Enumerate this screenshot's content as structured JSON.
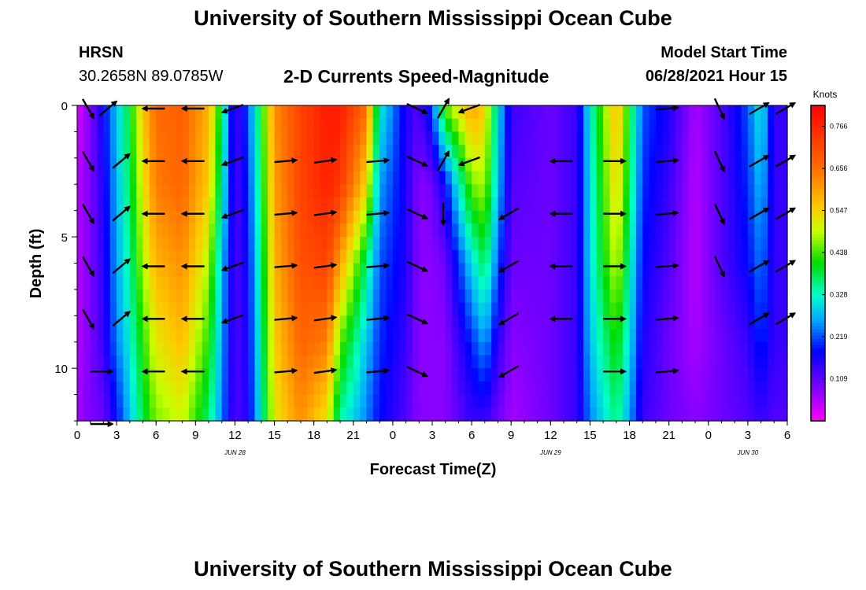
{
  "header": {
    "title": "University of Southern Mississippi Ocean Cube",
    "station": "HRSN",
    "coords": "30.2658N  89.0785W",
    "subtitle": "2-D Currents Speed-Magnitude",
    "model_label": "Model Start Time",
    "model_time": "06/28/2021 Hour 15"
  },
  "footer": {
    "title": "University of Southern Mississippi Ocean Cube"
  },
  "chart_data": {
    "type": "heatmap",
    "title": "2-D Currents Speed-Magnitude",
    "xlabel": "Forecast Time(Z)",
    "ylabel": "Depth (ft)",
    "x_hours": [
      0,
      54
    ],
    "xlim": [
      0,
      54
    ],
    "ylim": [
      0,
      12
    ],
    "x_tick_labels": [
      "0",
      "3",
      "6",
      "9",
      "12",
      "15",
      "18",
      "21",
      "0",
      "3",
      "6",
      "9",
      "12",
      "15",
      "18",
      "21",
      "0",
      "3",
      "6"
    ],
    "y_tick_labels": [
      "0",
      "5",
      "10"
    ],
    "y_tick_values": [
      0,
      5,
      10
    ],
    "date_labels": [
      {
        "label": "JUN 28",
        "hour": 12
      },
      {
        "label": "JUN 29",
        "hour": 36
      },
      {
        "label": "JUN 30",
        "hour": 51
      }
    ],
    "colorbar": {
      "unit": "Knots",
      "ticks": [
        "0.766",
        "0.656",
        "0.547",
        "0.438",
        "0.328",
        "0.219",
        "0.109"
      ],
      "range": [
        0,
        0.82
      ]
    },
    "speed_profile": [
      {
        "hour": 0,
        "values": [
          0.02,
          0.05,
          0.05,
          0.05,
          0.06
        ]
      },
      {
        "hour": 1,
        "values": [
          0.09,
          0.09,
          0.09,
          0.09,
          0.09
        ]
      },
      {
        "hour": 2,
        "values": [
          0.18,
          0.16,
          0.15,
          0.14,
          0.1
        ]
      },
      {
        "hour": 3,
        "values": [
          0.28,
          0.27,
          0.26,
          0.24,
          0.18
        ]
      },
      {
        "hour": 4,
        "values": [
          0.4,
          0.38,
          0.35,
          0.32,
          0.28
        ]
      },
      {
        "hour": 5,
        "values": [
          0.56,
          0.52,
          0.48,
          0.42,
          0.38
        ]
      },
      {
        "hour": 6,
        "values": [
          0.66,
          0.64,
          0.58,
          0.52,
          0.46
        ]
      },
      {
        "hour": 8,
        "values": [
          0.68,
          0.67,
          0.62,
          0.57,
          0.5
        ]
      },
      {
        "hour": 10,
        "values": [
          0.58,
          0.55,
          0.48,
          0.42,
          0.36
        ]
      },
      {
        "hour": 11,
        "values": [
          0.38,
          0.34,
          0.28,
          0.26,
          0.24
        ]
      },
      {
        "hour": 12,
        "values": [
          0.12,
          0.12,
          0.12,
          0.12,
          0.12
        ]
      },
      {
        "hour": 13,
        "values": [
          0.22,
          0.2,
          0.18,
          0.17,
          0.16
        ]
      },
      {
        "hour": 14,
        "values": [
          0.4,
          0.38,
          0.36,
          0.34,
          0.32
        ]
      },
      {
        "hour": 15,
        "values": [
          0.62,
          0.6,
          0.58,
          0.55,
          0.52
        ]
      },
      {
        "hour": 17,
        "values": [
          0.72,
          0.72,
          0.7,
          0.67,
          0.62
        ]
      },
      {
        "hour": 19,
        "values": [
          0.78,
          0.77,
          0.72,
          0.64,
          0.52
        ]
      },
      {
        "hour": 20,
        "values": [
          0.78,
          0.74,
          0.6,
          0.45,
          0.34
        ]
      },
      {
        "hour": 22,
        "values": [
          0.66,
          0.54,
          0.36,
          0.28,
          0.24
        ]
      },
      {
        "hour": 23,
        "values": [
          0.32,
          0.26,
          0.22,
          0.2,
          0.18
        ]
      },
      {
        "hour": 25,
        "values": [
          0.16,
          0.16,
          0.16,
          0.14,
          0.12
        ]
      },
      {
        "hour": 26,
        "values": [
          0.12,
          0.08,
          0.08,
          0.08,
          0.08
        ]
      },
      {
        "hour": 27,
        "values": [
          0.22,
          0.1,
          0.08,
          0.08,
          0.08
        ]
      },
      {
        "hour": 28,
        "values": [
          0.45,
          0.18,
          0.1,
          0.08,
          0.08
        ]
      },
      {
        "hour": 30,
        "values": [
          0.6,
          0.46,
          0.3,
          0.2,
          0.14
        ]
      },
      {
        "hour": 31,
        "values": [
          0.55,
          0.48,
          0.38,
          0.26,
          0.14
        ]
      },
      {
        "hour": 32,
        "values": [
          0.3,
          0.28,
          0.22,
          0.15,
          0.1
        ]
      },
      {
        "hour": 33,
        "values": [
          0.14,
          0.12,
          0.1,
          0.08,
          0.06
        ]
      },
      {
        "hour": 36,
        "values": [
          0.1,
          0.1,
          0.1,
          0.1,
          0.1
        ]
      },
      {
        "hour": 38,
        "values": [
          0.14,
          0.14,
          0.14,
          0.14,
          0.14
        ]
      },
      {
        "hour": 39,
        "values": [
          0.32,
          0.3,
          0.3,
          0.28,
          0.24
        ]
      },
      {
        "hour": 41,
        "values": [
          0.58,
          0.55,
          0.5,
          0.42,
          0.36
        ]
      },
      {
        "hour": 42,
        "values": [
          0.4,
          0.38,
          0.34,
          0.3,
          0.26
        ]
      },
      {
        "hour": 43,
        "values": [
          0.22,
          0.2,
          0.18,
          0.16,
          0.14
        ]
      },
      {
        "hour": 45,
        "values": [
          0.16,
          0.14,
          0.12,
          0.1,
          0.1
        ]
      },
      {
        "hour": 47,
        "values": [
          0.06,
          0.05,
          0.05,
          0.06,
          0.08
        ]
      },
      {
        "hour": 49,
        "values": [
          0.12,
          0.12,
          0.12,
          0.1,
          0.1
        ]
      },
      {
        "hour": 51,
        "values": [
          0.22,
          0.2,
          0.18,
          0.14,
          0.12
        ]
      },
      {
        "hour": 52,
        "values": [
          0.32,
          0.28,
          0.24,
          0.2,
          0.14
        ]
      },
      {
        "hour": 53,
        "values": [
          0.14,
          0.14,
          0.14,
          0.14,
          0.12
        ]
      },
      {
        "hour": 54,
        "values": [
          0.14,
          0.14,
          0.14,
          0.14,
          0.12
        ]
      }
    ],
    "depth_stations": [
      0,
      3,
      6,
      9,
      12
    ],
    "vectors": [
      {
        "hour": 0,
        "depths": [
          0,
          2,
          4,
          6,
          8
        ],
        "angle": 60
      },
      {
        "hour": 1.5,
        "depths": [
          0
        ],
        "angle": -40
      },
      {
        "hour": 1,
        "depths": [
          10,
          12
        ],
        "angle": 0
      },
      {
        "hour": 2.5,
        "depths": [
          2,
          4,
          6,
          8
        ],
        "angle": -40
      },
      {
        "hour": 5,
        "depths": [
          0,
          2,
          4,
          6,
          8,
          10
        ],
        "angle": 180
      },
      {
        "hour": 8,
        "depths": [
          0,
          2,
          4,
          6,
          8,
          10
        ],
        "angle": 180
      },
      {
        "hour": 11,
        "depths": [
          0,
          2,
          4,
          6,
          8
        ],
        "angle": 160
      },
      {
        "hour": 15,
        "depths": [
          2,
          4,
          6,
          8,
          10
        ],
        "angle": -5
      },
      {
        "hour": 18,
        "depths": [
          2,
          4,
          6,
          8,
          10
        ],
        "angle": -8
      },
      {
        "hour": 22,
        "depths": [
          2,
          4,
          6,
          8,
          10
        ],
        "angle": -5
      },
      {
        "hour": 25,
        "depths": [
          0,
          2,
          4,
          6,
          8,
          10
        ],
        "angle": 25
      },
      {
        "hour": 27,
        "depths": [
          0,
          2
        ],
        "angle": -60
      },
      {
        "hour": 27,
        "depths": [
          4
        ],
        "angle": 90
      },
      {
        "hour": 29,
        "depths": [
          0,
          2
        ],
        "angle": 160
      },
      {
        "hour": 32,
        "depths": [
          4,
          6,
          8,
          10
        ],
        "angle": 150
      },
      {
        "hour": 36,
        "depths": [
          2,
          4,
          6,
          8
        ],
        "angle": 180
      },
      {
        "hour": 40,
        "depths": [
          2,
          4,
          6,
          8,
          10
        ],
        "angle": 0
      },
      {
        "hour": 44,
        "depths": [
          0,
          2,
          4,
          6,
          8,
          10
        ],
        "angle": -5
      },
      {
        "hour": 48,
        "depths": [
          0,
          2,
          4,
          6
        ],
        "angle": 65
      },
      {
        "hour": 51,
        "depths": [
          0,
          2,
          4,
          6,
          8
        ],
        "angle": -30
      },
      {
        "hour": 53,
        "depths": [
          0,
          2,
          4,
          6,
          8
        ],
        "angle": -30
      }
    ]
  }
}
